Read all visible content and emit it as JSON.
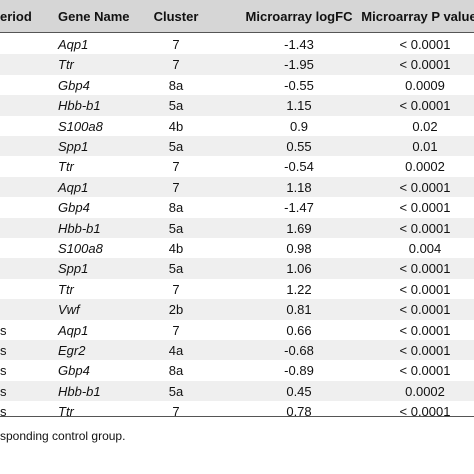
{
  "header": [
    "eriod",
    "Gene Name",
    "Cluster",
    "Microarray logFC",
    "Microarray P value"
  ],
  "rows": [
    {
      "gene": "Aqp1",
      "cluster": "7",
      "logfc": "-1.43",
      "p": "< 0.0001"
    },
    {
      "gene": "Ttr",
      "cluster": "7",
      "logfc": "-1.95",
      "p": "< 0.0001"
    },
    {
      "gene": "Gbp4",
      "cluster": "8a",
      "logfc": "-0.55",
      "p": "0.0009"
    },
    {
      "gene": "Hbb-b1",
      "cluster": "5a",
      "logfc": "1.15",
      "p": "< 0.0001"
    },
    {
      "gene": "S100a8",
      "cluster": "4b",
      "logfc": "0.9",
      "p": "0.02"
    },
    {
      "gene": "Spp1",
      "cluster": "5a",
      "logfc": "0.55",
      "p": "0.01"
    },
    {
      "gene": "Ttr",
      "cluster": "7",
      "logfc": "-0.54",
      "p": "0.0002"
    },
    {
      "gene": "Aqp1",
      "cluster": "7",
      "logfc": "1.18",
      "p": "< 0.0001"
    },
    {
      "gene": "Gbp4",
      "cluster": "8a",
      "logfc": "-1.47",
      "p": "< 0.0001"
    },
    {
      "gene": "Hbb-b1",
      "cluster": "5a",
      "logfc": "1.69",
      "p": "< 0.0001"
    },
    {
      "gene": "S100a8",
      "cluster": "4b",
      "logfc": "0.98",
      "p": "0.004"
    },
    {
      "gene": "Spp1",
      "cluster": "5a",
      "logfc": "1.06",
      "p": "< 0.0001"
    },
    {
      "gene": "Ttr",
      "cluster": "7",
      "logfc": "1.22",
      "p": "< 0.0001"
    },
    {
      "gene": "Vwf",
      "cluster": "2b",
      "logfc": "0.81",
      "p": "< 0.0001"
    },
    {
      "period": "s",
      "gene": "Aqp1",
      "cluster": "7",
      "logfc": "0.66",
      "p": "< 0.0001"
    },
    {
      "period": "s",
      "gene": "Egr2",
      "cluster": "4a",
      "logfc": "-0.68",
      "p": "< 0.0001"
    },
    {
      "period": "s",
      "gene": "Gbp4",
      "cluster": "8a",
      "logfc": "-0.89",
      "p": "< 0.0001"
    },
    {
      "period": "s",
      "gene": "Hbb-b1",
      "cluster": "5a",
      "logfc": "0.45",
      "p": "0.0002"
    },
    {
      "period": "s",
      "gene": "Ttr",
      "cluster": "7",
      "logfc": "0.78",
      "p": "< 0.0001"
    }
  ],
  "footnote": "sponding control group."
}
